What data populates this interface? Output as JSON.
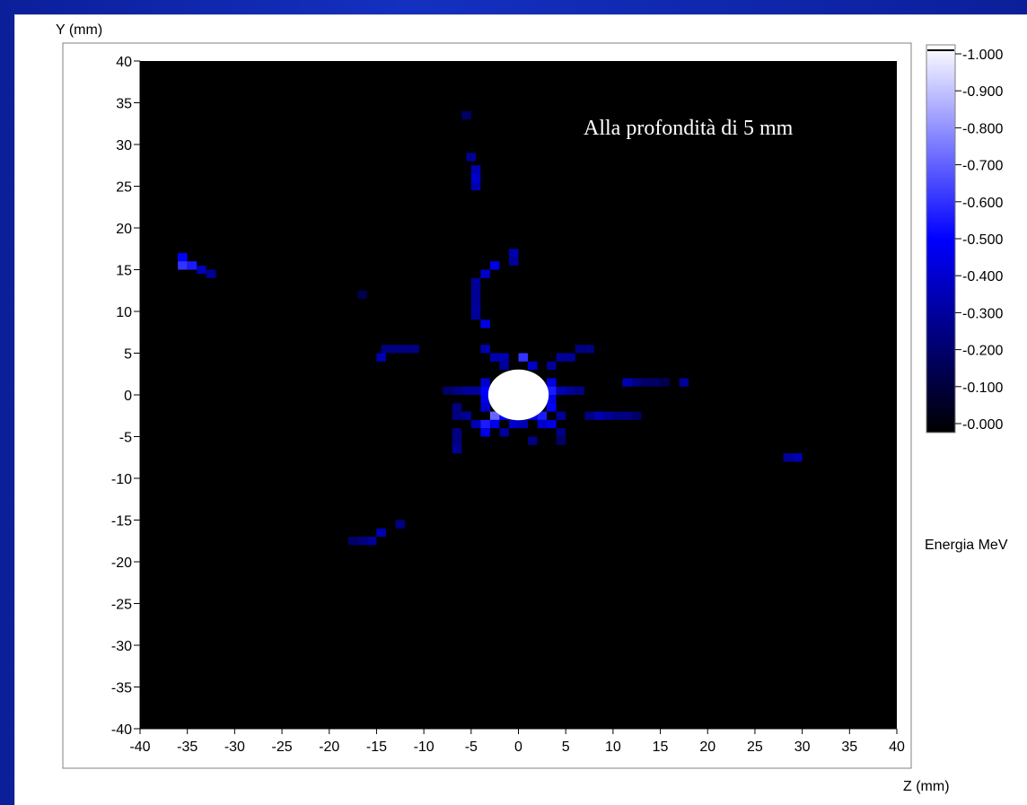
{
  "chart_data": {
    "type": "heatmap",
    "ylabel": "Y (mm)",
    "xlabel": "Z (mm)",
    "annotation": "Alla profondità di 5 mm",
    "xlim": [
      -40,
      40
    ],
    "ylim": [
      -40,
      40
    ],
    "x_ticks": [
      "-40",
      "-35",
      "-30",
      "-25",
      "-20",
      "-15",
      "-10",
      "-5",
      "0",
      "5",
      "10",
      "15",
      "20",
      "25",
      "30",
      "35",
      "40"
    ],
    "y_ticks": [
      "40",
      "35",
      "30",
      "25",
      "20",
      "15",
      "10",
      "5",
      "0",
      "-5",
      "-10",
      "-15",
      "-20",
      "-25",
      "-30",
      "-35",
      "-40"
    ],
    "colorbar": {
      "label": "Energia MeV",
      "ticks": [
        "1.000",
        "0.900",
        "0.800",
        "0.700",
        "0.600",
        "0.500",
        "0.400",
        "0.300",
        "0.200",
        "0.100",
        "0.000"
      ],
      "range": [
        0,
        1
      ],
      "colors": [
        "#000000",
        "#0000ff",
        "#ffffff"
      ]
    },
    "background_color": "#000000",
    "hot_spot": {
      "z": 0,
      "y": 0,
      "radius_mm": 3.2,
      "value": 1.0
    },
    "cells": [
      {
        "z": -35.5,
        "y": 16.5,
        "v": 0.5
      },
      {
        "z": -35.5,
        "y": 15.5,
        "v": 0.6
      },
      {
        "z": -34.5,
        "y": 15.5,
        "v": 0.55
      },
      {
        "z": -33.5,
        "y": 15,
        "v": 0.35
      },
      {
        "z": -32.5,
        "y": 14.5,
        "v": 0.3
      },
      {
        "z": -16.5,
        "y": 12,
        "v": 0.15
      },
      {
        "z": -5.5,
        "y": 33.5,
        "v": 0.2
      },
      {
        "z": -5.0,
        "y": 28.5,
        "v": 0.3
      },
      {
        "z": -4.5,
        "y": 27,
        "v": 0.35
      },
      {
        "z": -4.5,
        "y": 26,
        "v": 0.4
      },
      {
        "z": -4.5,
        "y": 25,
        "v": 0.35
      },
      {
        "z": -0.5,
        "y": 17,
        "v": 0.35
      },
      {
        "z": -0.5,
        "y": 16,
        "v": 0.3
      },
      {
        "z": -2.5,
        "y": 15.5,
        "v": 0.45
      },
      {
        "z": -3.5,
        "y": 14.5,
        "v": 0.4
      },
      {
        "z": -4.5,
        "y": 13.5,
        "v": 0.3
      },
      {
        "z": -4.5,
        "y": 12.5,
        "v": 0.3
      },
      {
        "z": -4.5,
        "y": 11.5,
        "v": 0.3
      },
      {
        "z": -4.5,
        "y": 10.5,
        "v": 0.3
      },
      {
        "z": -4.5,
        "y": 9.5,
        "v": 0.3
      },
      {
        "z": -3.5,
        "y": 8.5,
        "v": 0.45
      },
      {
        "z": -14,
        "y": 5.5,
        "v": 0.25
      },
      {
        "z": -13,
        "y": 5.5,
        "v": 0.25
      },
      {
        "z": -12,
        "y": 5.5,
        "v": 0.25
      },
      {
        "z": -11,
        "y": 5.5,
        "v": 0.25
      },
      {
        "z": -14.5,
        "y": 4.5,
        "v": 0.35
      },
      {
        "z": -3.5,
        "y": 5.5,
        "v": 0.35
      },
      {
        "z": -2.5,
        "y": 4.5,
        "v": 0.35
      },
      {
        "z": -1.5,
        "y": 4.5,
        "v": 0.35
      },
      {
        "z": -1.5,
        "y": 3.5,
        "v": 0.3
      },
      {
        "z": 0.5,
        "y": 4.5,
        "v": 0.6
      },
      {
        "z": 1.5,
        "y": 3.5,
        "v": 0.4
      },
      {
        "z": 3.5,
        "y": 3.5,
        "v": 0.3
      },
      {
        "z": 4.5,
        "y": 4.5,
        "v": 0.3
      },
      {
        "z": 5.5,
        "y": 4.5,
        "v": 0.3
      },
      {
        "z": 6.5,
        "y": 5.5,
        "v": 0.25
      },
      {
        "z": 7.5,
        "y": 5.5,
        "v": 0.25
      },
      {
        "z": -7.5,
        "y": 0.5,
        "v": 0.2
      },
      {
        "z": -6.5,
        "y": 0.5,
        "v": 0.25
      },
      {
        "z": -5.5,
        "y": 0.5,
        "v": 0.3
      },
      {
        "z": -4.5,
        "y": 0.5,
        "v": 0.3
      },
      {
        "z": -3.5,
        "y": 1.5,
        "v": 0.4
      },
      {
        "z": -3.5,
        "y": 0.5,
        "v": 0.5
      },
      {
        "z": -3.5,
        "y": -0.5,
        "v": 0.45
      },
      {
        "z": -3.5,
        "y": -1.5,
        "v": 0.4
      },
      {
        "z": 3.5,
        "y": 1.5,
        "v": 0.45
      },
      {
        "z": 3.5,
        "y": 0.5,
        "v": 0.55
      },
      {
        "z": 3.5,
        "y": -0.5,
        "v": 0.45
      },
      {
        "z": 3.5,
        "y": -1.5,
        "v": 0.5
      },
      {
        "z": 4.5,
        "y": 0.5,
        "v": 0.35
      },
      {
        "z": 5.5,
        "y": 0.5,
        "v": 0.3
      },
      {
        "z": 6.5,
        "y": 0.5,
        "v": 0.25
      },
      {
        "z": 11.5,
        "y": 1.5,
        "v": 0.35
      },
      {
        "z": 12.5,
        "y": 1.5,
        "v": 0.25
      },
      {
        "z": 13.5,
        "y": 1.5,
        "v": 0.2
      },
      {
        "z": 14.5,
        "y": 1.5,
        "v": 0.2
      },
      {
        "z": 15.5,
        "y": 1.5,
        "v": 0.15
      },
      {
        "z": 17.5,
        "y": 1.5,
        "v": 0.3
      },
      {
        "z": -6.5,
        "y": -1.5,
        "v": 0.25
      },
      {
        "z": -6.5,
        "y": -2.5,
        "v": 0.25
      },
      {
        "z": -5.5,
        "y": -2.5,
        "v": 0.3
      },
      {
        "z": -4.5,
        "y": -3.5,
        "v": 0.35
      },
      {
        "z": -3.5,
        "y": -3.5,
        "v": 0.55
      },
      {
        "z": -2.5,
        "y": -2.5,
        "v": 0.7
      },
      {
        "z": -2.5,
        "y": -3.5,
        "v": 0.45
      },
      {
        "z": -1.5,
        "y": -2.5,
        "v": 0.5
      },
      {
        "z": -0.5,
        "y": -3.5,
        "v": 0.4
      },
      {
        "z": 0.5,
        "y": -3.5,
        "v": 0.35
      },
      {
        "z": 1.5,
        "y": -2.5,
        "v": 0.45
      },
      {
        "z": 2.5,
        "y": -2.5,
        "v": 0.55
      },
      {
        "z": 2.5,
        "y": -3.5,
        "v": 0.4
      },
      {
        "z": 3.5,
        "y": -3.5,
        "v": 0.45
      },
      {
        "z": 4.5,
        "y": -2.5,
        "v": 0.3
      },
      {
        "z": 4.5,
        "y": -4.5,
        "v": 0.25
      },
      {
        "z": 4.5,
        "y": -5.5,
        "v": 0.2
      },
      {
        "z": -6.5,
        "y": -4.5,
        "v": 0.25
      },
      {
        "z": -6.5,
        "y": -5.5,
        "v": 0.25
      },
      {
        "z": -3.5,
        "y": -4.5,
        "v": 0.45
      },
      {
        "z": -1.5,
        "y": -4.5,
        "v": 0.3
      },
      {
        "z": 1.5,
        "y": -5.5,
        "v": 0.25
      },
      {
        "z": -6.5,
        "y": -6.5,
        "v": 0.3
      },
      {
        "z": 7.5,
        "y": -2.5,
        "v": 0.25
      },
      {
        "z": 8.5,
        "y": -2.5,
        "v": 0.35
      },
      {
        "z": 9.5,
        "y": -2.5,
        "v": 0.3
      },
      {
        "z": 10.5,
        "y": -2.5,
        "v": 0.25
      },
      {
        "z": 11.5,
        "y": -2.5,
        "v": 0.25
      },
      {
        "z": 12.5,
        "y": -2.5,
        "v": 0.2
      },
      {
        "z": 28.5,
        "y": -7.5,
        "v": 0.3
      },
      {
        "z": 29.5,
        "y": -7.5,
        "v": 0.35
      },
      {
        "z": -17.5,
        "y": -17.5,
        "v": 0.2
      },
      {
        "z": -16.5,
        "y": -17.5,
        "v": 0.25
      },
      {
        "z": -15.5,
        "y": -17.5,
        "v": 0.3
      },
      {
        "z": -14.5,
        "y": -16.5,
        "v": 0.35
      },
      {
        "z": -12.5,
        "y": -15.5,
        "v": 0.25
      }
    ]
  }
}
